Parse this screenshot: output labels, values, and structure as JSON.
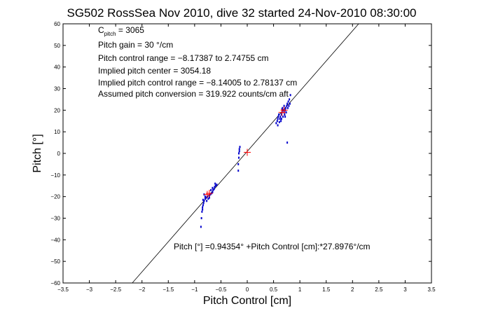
{
  "chart_data": {
    "type": "scatter",
    "title": "SG502 RossSea Nov 2010, dive 32 started 24-Nov-2010 08:30:00",
    "xlabel": "Pitch Control [cm]",
    "ylabel": "Pitch [°]",
    "xlim": [
      -3.5,
      3.5
    ],
    "ylim": [
      -60,
      60
    ],
    "xticks": [
      -3.5,
      -3,
      -2.5,
      -2,
      -1.5,
      -1,
      -0.5,
      0,
      0.5,
      1,
      1.5,
      2,
      2.5,
      3,
      3.5
    ],
    "xtick_labels": [
      "−3.5",
      "−3",
      "−2.5",
      "−2",
      "−1.5",
      "−1",
      "−0.5",
      "0",
      "0.5",
      "1",
      "1.5",
      "2",
      "2.5",
      "3",
      "3.5"
    ],
    "yticks": [
      -60,
      -50,
      -40,
      -30,
      -20,
      -10,
      0,
      10,
      20,
      30,
      40,
      50,
      60
    ],
    "ytick_labels": [
      "−60",
      "−50",
      "−40",
      "−30",
      "−20",
      "−10",
      "0",
      "10",
      "20",
      "30",
      "40",
      "50",
      "60"
    ],
    "grid": false,
    "annotations": {
      "c_pitch_main": "C",
      "c_pitch_sub": "pitch",
      "c_pitch_value": " = 3065",
      "gain": "Pitch gain = 30 °/cm",
      "range": "Pitch control range = −8.17387 to 2.74755 cm",
      "center": "Implied pitch center = 3054.18",
      "implied_range": "Implied pitch control range = −8.14005 to 2.78137 cm",
      "conversion": "Assumed pitch conversion = 319.922 counts/cm aft",
      "fit_equation": "Pitch [°] =0.94354° +Pitch Control [cm]:*27.8976°/cm"
    },
    "fit_line": {
      "intercept": 0.94354,
      "slope": 27.8976
    },
    "series": [
      {
        "color": "#0000cc",
        "marker": "dot",
        "points": [
          [
            -0.88,
            -34
          ],
          [
            -0.87,
            -30
          ],
          [
            -0.86,
            -27
          ],
          [
            -0.85,
            -25
          ],
          [
            -0.84,
            -24
          ],
          [
            -0.83,
            -23
          ],
          [
            -0.82,
            -22
          ],
          [
            -0.8,
            -21
          ],
          [
            -0.78,
            -20.5
          ],
          [
            -0.76,
            -20
          ],
          [
            -0.74,
            -21
          ],
          [
            -0.72,
            -19.5
          ],
          [
            -0.7,
            -19
          ],
          [
            -0.68,
            -18.5
          ],
          [
            -0.66,
            -18
          ],
          [
            -0.65,
            -17
          ],
          [
            -0.63,
            -16.5
          ],
          [
            -0.62,
            -15.5
          ],
          [
            -0.6,
            -15
          ],
          [
            -0.58,
            -14.5
          ],
          [
            -0.84,
            -21.5
          ],
          [
            -0.8,
            -20
          ],
          [
            -0.77,
            -22
          ],
          [
            -0.72,
            -20.5
          ],
          [
            -0.69,
            -17
          ],
          [
            -0.66,
            -16
          ],
          [
            -0.61,
            -14
          ],
          [
            -0.85,
            -26
          ],
          [
            -0.82,
            -19
          ],
          [
            -0.17,
            -8
          ],
          [
            -0.17,
            -5
          ],
          [
            -0.16,
            -2
          ],
          [
            -0.16,
            0
          ],
          [
            -0.15,
            1
          ],
          [
            -0.15,
            2
          ],
          [
            -0.14,
            3
          ],
          [
            0.55,
            14
          ],
          [
            0.57,
            15
          ],
          [
            0.58,
            16
          ],
          [
            0.59,
            17
          ],
          [
            0.6,
            18
          ],
          [
            0.62,
            16
          ],
          [
            0.63,
            17
          ],
          [
            0.65,
            18
          ],
          [
            0.66,
            19
          ],
          [
            0.68,
            20
          ],
          [
            0.7,
            19
          ],
          [
            0.72,
            20
          ],
          [
            0.73,
            21
          ],
          [
            0.75,
            22
          ],
          [
            0.76,
            23
          ],
          [
            0.78,
            24
          ],
          [
            0.8,
            25
          ],
          [
            0.82,
            27
          ],
          [
            0.65,
            16
          ],
          [
            0.68,
            17
          ],
          [
            0.71,
            18
          ],
          [
            0.74,
            19
          ],
          [
            0.77,
            21
          ],
          [
            0.79,
            22
          ],
          [
            0.81,
            23
          ],
          [
            0.58,
            13
          ],
          [
            0.61,
            14.5
          ],
          [
            0.64,
            15
          ],
          [
            0.67,
            21
          ],
          [
            0.7,
            22
          ],
          [
            0.72,
            17
          ],
          [
            0.66,
            20.5
          ],
          [
            0.76,
            5
          ]
        ]
      },
      {
        "color": "#ff0000",
        "marker": "plus",
        "points": [
          [
            -0.76,
            -19
          ],
          [
            -0.72,
            -18.5
          ],
          [
            0.0,
            0.5
          ],
          [
            0.66,
            19
          ],
          [
            0.7,
            20
          ]
        ]
      }
    ]
  }
}
